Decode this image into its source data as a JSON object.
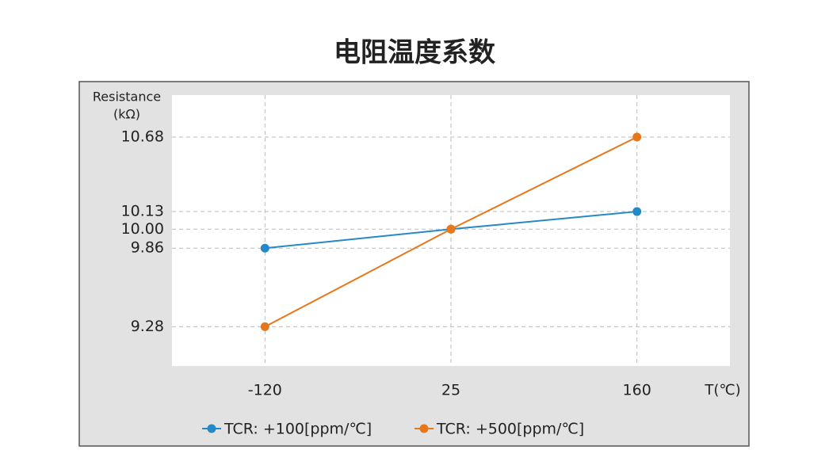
{
  "chart_data": {
    "type": "line",
    "title": "电阻温度系数",
    "y_label": [
      "Resistance",
      "(kΩ)"
    ],
    "x_label": "T(℃)",
    "categories": [
      "-120",
      "25",
      "160"
    ],
    "series": [
      {
        "name": "TCR: +100[ppm/℃]",
        "color": "#2389c8",
        "values": [
          9.86,
          10,
          10.13
        ]
      },
      {
        "name": "TCR: +500[ppm/℃]",
        "color": "#e8761a",
        "values": [
          9.28,
          10,
          10.68
        ]
      }
    ],
    "ylim": [
      8.99,
      10.99
    ],
    "yticks": [
      9.28,
      9.86,
      {
        "value": 10,
        "label": "10.00"
      },
      10.13,
      10.68
    ],
    "grid": true,
    "legend": "bottom"
  }
}
